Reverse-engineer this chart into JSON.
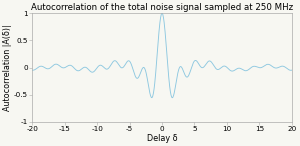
{
  "title": "Autocorrelation of the total noise signal sampled at 250 MHz",
  "xlabel": "Delay δ",
  "ylabel": "Autocorrelation |A(δ)|",
  "xlim": [
    -20,
    20
  ],
  "ylim": [
    -1,
    1
  ],
  "xticks": [
    -20,
    -15,
    -10,
    -5,
    0,
    5,
    10,
    15,
    20
  ],
  "yticks": [
    -1,
    -0.5,
    0,
    0.5,
    1
  ],
  "line_color": "#8ec8e0",
  "background_color": "#f7f7f2",
  "title_fontsize": 6.2,
  "label_fontsize": 5.8,
  "tick_fontsize": 5.2,
  "linewidth": 0.65
}
